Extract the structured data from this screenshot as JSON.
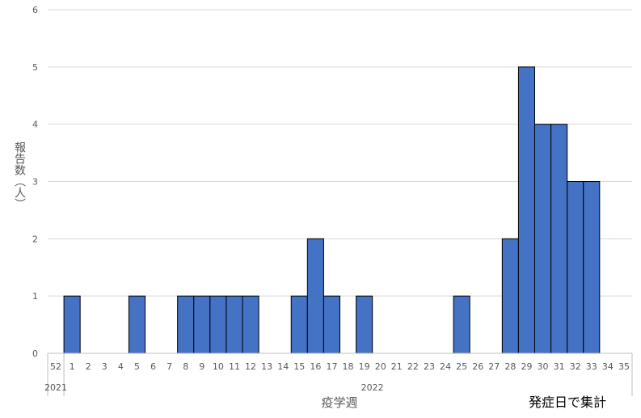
{
  "chart_data": {
    "type": "bar",
    "ylabel": "報告数（人）",
    "xlabel": "疫学週",
    "note": "発症日で集計",
    "ylim": [
      0,
      6
    ],
    "yticks": [
      "0",
      "1",
      "2",
      "3",
      "4",
      "5",
      "6"
    ],
    "categories": [
      "52",
      "1",
      "2",
      "3",
      "4",
      "5",
      "6",
      "7",
      "8",
      "9",
      "10",
      "11",
      "12",
      "13",
      "14",
      "15",
      "16",
      "17",
      "18",
      "19",
      "20",
      "21",
      "22",
      "23",
      "24",
      "25",
      "26",
      "27",
      "28",
      "29",
      "30",
      "31",
      "32",
      "33",
      "34",
      "35"
    ],
    "values": [
      0,
      1,
      0,
      0,
      0,
      1,
      0,
      0,
      1,
      1,
      1,
      1,
      1,
      0,
      0,
      1,
      2,
      1,
      0,
      1,
      0,
      0,
      0,
      0,
      0,
      1,
      0,
      0,
      2,
      5,
      4,
      4,
      3,
      3,
      0,
      0
    ],
    "year_labels": [
      {
        "label": "2021",
        "category": "52"
      },
      {
        "label": "2022",
        "category": "19"
      }
    ],
    "grid": true,
    "legend": "none",
    "bar_color": "#4472C4",
    "bar_edge_color": "#000000"
  }
}
